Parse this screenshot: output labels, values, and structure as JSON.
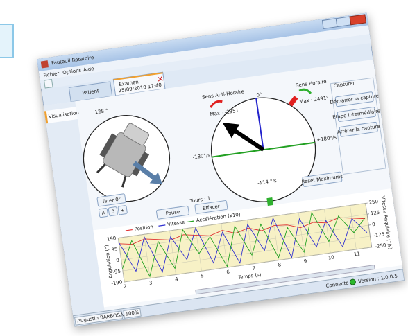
{
  "window": {
    "title": "Fauteuil Rotatoire",
    "menu": [
      "Fichier",
      "Options",
      "Aide"
    ]
  },
  "tabs": [
    {
      "label": "Patient"
    },
    {
      "label": "Examen",
      "date": "25/09/2010 17:40"
    }
  ],
  "sidebar": [
    "Visualisation"
  ],
  "position": {
    "angle": "128 °"
  },
  "dial": {
    "left_label": "Sens Anti-Horaire",
    "left_max": "Max : -1351",
    "right_label": "Sens Horaire",
    "right_max": "Max : 2491°",
    "top": "0°",
    "left": "-180°/s",
    "right": "+180°/s",
    "speed": "-114 °/s",
    "turns": "Tours : 1",
    "reset": "Reset Maximums"
  },
  "capture": {
    "title": "Capturer",
    "buttons": [
      "Démarrer la capture",
      "Etape intermédiaire",
      "Arrêter la capture"
    ]
  },
  "controls": {
    "tare": "Tarer 0°",
    "small": [
      "A",
      "0",
      "+"
    ],
    "pause": "Pause",
    "clear": "Effacer"
  },
  "chart_data": {
    "type": "line",
    "x": [
      2,
      2.5,
      3,
      3.5,
      4,
      4.5,
      5,
      5.5,
      6,
      6.5,
      7,
      7.5,
      8,
      8.5,
      9,
      9.5,
      10,
      10.5,
      11,
      11.5
    ],
    "series": [
      {
        "name": "Position",
        "color": "#e03030",
        "axis": "y",
        "values": [
          140,
          120,
          150,
          130,
          110,
          140,
          120,
          100,
          130,
          90,
          120,
          80,
          110,
          100,
          60,
          90,
          70,
          100,
          80,
          60
        ]
      },
      {
        "name": "Vitesse",
        "color": "#3030d0",
        "axis": "y2",
        "values": [
          200,
          -150,
          220,
          -200,
          180,
          -100,
          240,
          -180,
          150,
          -220,
          200,
          -120,
          230,
          -240,
          180,
          -160,
          120,
          -200,
          100,
          -80
        ]
      },
      {
        "name": "Accélération (x10)",
        "color": "#20a020",
        "axis": "y2",
        "values": [
          -100,
          200,
          -230,
          150,
          -180,
          240,
          -50,
          120,
          -240,
          200,
          -150,
          180,
          -220,
          100,
          -200,
          230,
          -120,
          150,
          -60,
          90
        ]
      }
    ],
    "xlim": [
      2,
      11.6
    ],
    "xticks": [
      2,
      3,
      4,
      5,
      6,
      7,
      8,
      9,
      10,
      11
    ],
    "ylim": [
      -190,
      190
    ],
    "yticks": [
      190,
      95,
      0,
      -95,
      -190
    ],
    "y2lim": [
      -250,
      250
    ],
    "y2ticks": [
      250,
      125,
      0,
      -125,
      -250
    ],
    "xlabel": "Temps (s)",
    "ylabel": "Angulation (°)",
    "y2label": "Vitesse Angulaire (°/s)",
    "grid": true
  },
  "status": {
    "user": "Augustin BARBOSA",
    "zoom": "100%",
    "connection": "Connecté",
    "version": "Version : 1.0.0.5"
  }
}
